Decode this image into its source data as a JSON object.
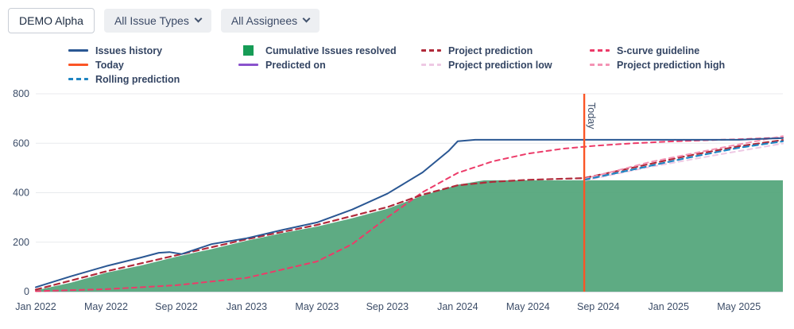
{
  "toolbar": {
    "project_label": "DEMO Alpha",
    "issue_types_filter": "All Issue Types",
    "assignees_filter": "All Assignees"
  },
  "legend": {
    "columns": [
      [
        "issues_history",
        "today",
        "rolling_prediction"
      ],
      [
        "cumulative_resolved",
        "predicted_on"
      ],
      [
        "project_prediction",
        "project_prediction_low"
      ],
      [
        "s_curve",
        "project_prediction_high"
      ]
    ],
    "items": {
      "issues_history": {
        "label": "Issues history",
        "color": "#2a5793",
        "marker": "line"
      },
      "today": {
        "label": "Today",
        "color": "#fb5526",
        "marker": "line"
      },
      "rolling_prediction": {
        "label": "Rolling prediction",
        "color": "#1f85c2",
        "marker": "dashed"
      },
      "cumulative_resolved": {
        "label": "Cumulative Issues resolved",
        "color": "#169c56",
        "marker": "square"
      },
      "predicted_on": {
        "label": "Predicted on",
        "color": "#8a52cc",
        "marker": "line"
      },
      "project_prediction": {
        "label": "Project prediction",
        "color": "#b02a3a",
        "marker": "dashed"
      },
      "project_prediction_low": {
        "label": "Project prediction low",
        "color": "#eec9e4",
        "marker": "dashed"
      },
      "s_curve": {
        "label": "S-curve guideline",
        "color": "#ec3b69",
        "marker": "dashed"
      },
      "project_prediction_high": {
        "label": "Project prediction high",
        "color": "#f493b4",
        "marker": "dashed"
      }
    }
  },
  "chart_data": {
    "type": "line",
    "title": "",
    "x_unit": "months since Jan 2022",
    "x_axis_ticks": [
      "Jan 2022",
      "May 2022",
      "Sep 2022",
      "Jan 2023",
      "May 2023",
      "Sep 2023",
      "Jan 2024",
      "May 2024",
      "Sep 2024",
      "Jan 2025",
      "May 2025"
    ],
    "x_tick_positions": [
      0,
      4,
      8,
      12,
      16,
      20,
      24,
      28,
      32,
      36,
      40
    ],
    "x_range": [
      0,
      42.5
    ],
    "y_ticks": [
      0,
      200,
      400,
      600,
      800
    ],
    "y_range": [
      0,
      800
    ],
    "grid": "horizontal",
    "legend_position": "top",
    "today_x": 31.2,
    "today_label": "Today",
    "today_color": "#fb5526",
    "series": [
      {
        "name": "Cumulative Issues resolved",
        "slug": "cumulative-issues-resolved",
        "type": "area",
        "color": "#55a77c",
        "fill_opacity": 0.95,
        "points": [
          [
            0,
            5
          ],
          [
            2,
            36
          ],
          [
            4,
            76
          ],
          [
            6,
            106
          ],
          [
            8,
            141
          ],
          [
            10,
            172
          ],
          [
            12,
            206
          ],
          [
            14,
            236
          ],
          [
            16,
            263
          ],
          [
            18,
            297
          ],
          [
            20,
            335
          ],
          [
            22,
            388
          ],
          [
            24,
            432
          ],
          [
            25.5,
            450
          ],
          [
            42.5,
            450
          ]
        ]
      },
      {
        "name": "S-curve guideline",
        "slug": "s-curve-guideline",
        "type": "line",
        "color": "#ec3b69",
        "width": 2,
        "dash": "6 5",
        "points": [
          [
            0,
            2
          ],
          [
            4,
            10
          ],
          [
            8,
            26
          ],
          [
            12,
            56
          ],
          [
            16,
            122
          ],
          [
            18,
            192
          ],
          [
            20,
            300
          ],
          [
            22,
            402
          ],
          [
            24,
            480
          ],
          [
            26,
            527
          ],
          [
            28,
            558
          ],
          [
            30,
            578
          ],
          [
            32,
            591
          ],
          [
            34,
            600
          ],
          [
            36,
            607
          ],
          [
            38,
            612
          ],
          [
            40,
            616
          ],
          [
            42.5,
            623
          ]
        ]
      },
      {
        "name": "Project prediction",
        "slug": "project-prediction",
        "type": "line",
        "color": "#b02a3a",
        "width": 2.2,
        "dash": "7 5",
        "points": [
          [
            0,
            8
          ],
          [
            4,
            82
          ],
          [
            8,
            147
          ],
          [
            12,
            212
          ],
          [
            16,
            270
          ],
          [
            20,
            342
          ],
          [
            22,
            392
          ],
          [
            24,
            430
          ],
          [
            26,
            444
          ],
          [
            28,
            452
          ],
          [
            31.2,
            459
          ],
          [
            34,
            502
          ],
          [
            37,
            548
          ],
          [
            40,
            588
          ],
          [
            42.5,
            613
          ]
        ]
      },
      {
        "name": "Project prediction low",
        "slug": "project-prediction-low",
        "type": "line",
        "color": "#eec9e4",
        "width": 2,
        "dash": "6 5",
        "points": [
          [
            31.2,
            449
          ],
          [
            35,
            505
          ],
          [
            39,
            556
          ],
          [
            42.5,
            599
          ]
        ]
      },
      {
        "name": "Project prediction high",
        "slug": "project-prediction-high",
        "type": "line",
        "color": "#f493b4",
        "width": 2,
        "dash": "6 5",
        "points": [
          [
            31.2,
            456
          ],
          [
            35,
            525
          ],
          [
            39,
            582
          ],
          [
            42.5,
            629
          ]
        ]
      },
      {
        "name": "Rolling prediction",
        "slug": "rolling-prediction",
        "type": "line",
        "color": "#1f85c2",
        "width": 2.2,
        "dash": "7 5",
        "points": [
          [
            31.2,
            452
          ],
          [
            34,
            494
          ],
          [
            37,
            540
          ],
          [
            40,
            582
          ],
          [
            42.5,
            608
          ]
        ]
      },
      {
        "name": "Issues history",
        "slug": "issues-history",
        "type": "line",
        "color": "#2a5793",
        "width": 2,
        "dash": null,
        "points": [
          [
            0,
            18
          ],
          [
            2,
            62
          ],
          [
            4,
            103
          ],
          [
            6,
            138
          ],
          [
            7,
            157
          ],
          [
            7.6,
            160
          ],
          [
            8.3,
            152
          ],
          [
            10,
            192
          ],
          [
            12,
            216
          ],
          [
            14,
            249
          ],
          [
            16,
            280
          ],
          [
            18,
            332
          ],
          [
            20,
            396
          ],
          [
            22,
            482
          ],
          [
            23.5,
            570
          ],
          [
            24,
            608
          ],
          [
            25,
            614
          ],
          [
            40,
            614
          ],
          [
            42.5,
            621
          ]
        ]
      }
    ]
  }
}
